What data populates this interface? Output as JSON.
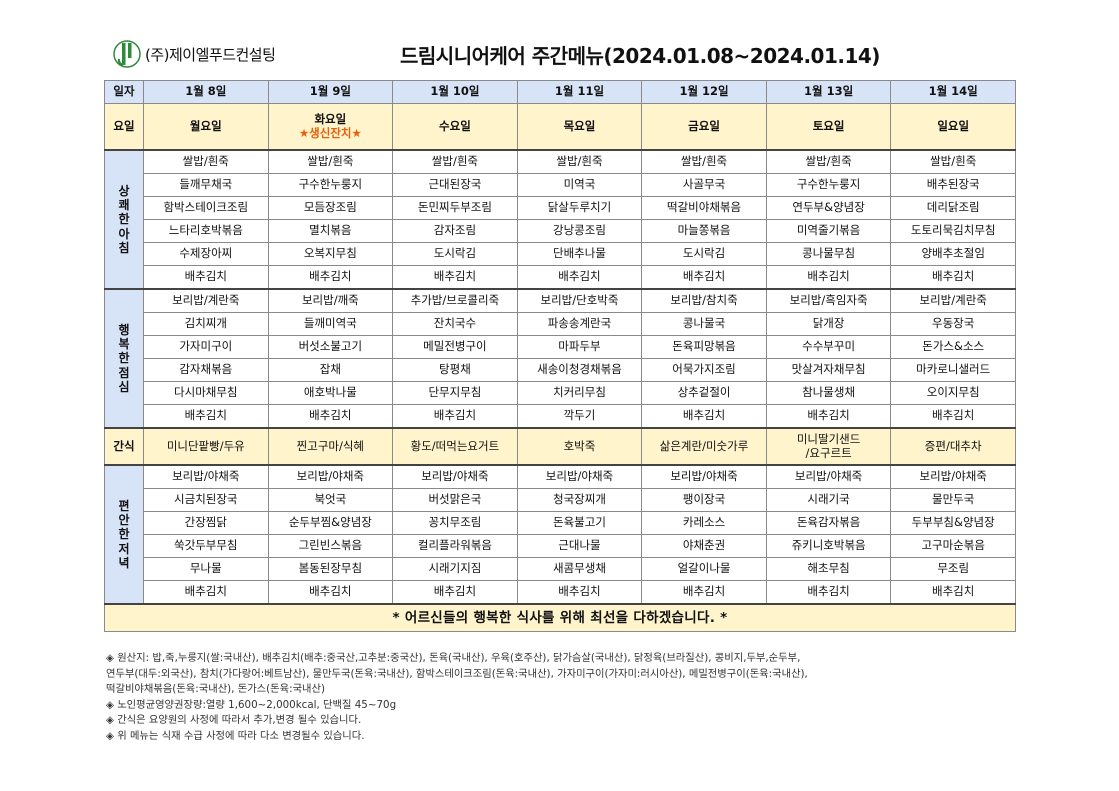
{
  "company": {
    "name": "(주)제이엘푸드컨설팅"
  },
  "title": "드림시니어케어 주간메뉴(2024.01.08~2024.01.14)",
  "header": {
    "date_label": "일자",
    "day_label": "요일",
    "dates": [
      "1월 8일",
      "1월 9일",
      "1월 10일",
      "1월 11일",
      "1월 12일",
      "1월 13일",
      "1월 14일"
    ],
    "days": [
      "월요일",
      "화요일",
      "수요일",
      "목요일",
      "금요일",
      "토요일",
      "일요일"
    ],
    "event": "★생신잔치★"
  },
  "breakfast": {
    "label": [
      "상",
      "쾌",
      "한",
      "아",
      "침"
    ],
    "rows": [
      [
        "쌀밥/흰죽",
        "쌀밥/흰죽",
        "쌀밥/흰죽",
        "쌀밥/흰죽",
        "쌀밥/흰죽",
        "쌀밥/흰죽",
        "쌀밥/흰죽"
      ],
      [
        "들깨무채국",
        "구수한누룽지",
        "근대된장국",
        "미역국",
        "사골무국",
        "구수한누룽지",
        "배추된장국"
      ],
      [
        "함박스테이크조림",
        "모듬장조림",
        "돈민찌두부조림",
        "닭살두루치기",
        "떡갈비야채볶음",
        "연두부&양념장",
        "데리닭조림"
      ],
      [
        "느타리호박볶음",
        "멸치볶음",
        "감자조림",
        "강낭콩조림",
        "마늘쫑볶음",
        "미역줄기볶음",
        "도토리묵김치무침"
      ],
      [
        "수제장아찌",
        "오복지무침",
        "도시락김",
        "단배추나물",
        "도시락김",
        "콩나물무침",
        "양배추초절임"
      ],
      [
        "배추김치",
        "배추김치",
        "배추김치",
        "배추김치",
        "배추김치",
        "배추김치",
        "배추김치"
      ]
    ]
  },
  "lunch": {
    "label": [
      "행",
      "복",
      "한",
      "점",
      "심"
    ],
    "rows": [
      [
        "보리밥/계란죽",
        "보리밥/깨죽",
        "추가밥/브로콜리죽",
        "보리밥/단호박죽",
        "보리밥/참치죽",
        "보리밥/흑임자죽",
        "보리밥/계란죽"
      ],
      [
        "김치찌개",
        "들깨미역국",
        "잔치국수",
        "파송송계란국",
        "콩나물국",
        "닭개장",
        "우동장국"
      ],
      [
        "가자미구이",
        "버섯소불고기",
        "메밀전병구이",
        "마파두부",
        "돈육피망볶음",
        "수수부꾸미",
        "돈가스&소스"
      ],
      [
        "감자채볶음",
        "잡채",
        "탕평채",
        "새송이청경채볶음",
        "어묵가지조림",
        "맛살겨자채무침",
        "마카로니샐러드"
      ],
      [
        "다시마채무침",
        "애호박나물",
        "단무지무침",
        "치커리무침",
        "상추겉절이",
        "참나물생채",
        "오이지무침"
      ],
      [
        "배추김치",
        "배추김치",
        "배추김치",
        "깍두기",
        "배추김치",
        "배추김치",
        "배추김치"
      ]
    ]
  },
  "snack": {
    "label": "간식",
    "items": [
      "미니단팥빵/두유",
      "찐고구마/식혜",
      "황도/떠먹는요거트",
      "호박죽",
      "삶은계란/미숫가루",
      "미니딸기샌드\n/요구르트",
      "증편/대추차"
    ]
  },
  "dinner": {
    "label": [
      "편",
      "안",
      "한",
      "저",
      "녁"
    ],
    "rows": [
      [
        "보리밥/야채죽",
        "보리밥/야채죽",
        "보리밥/야채죽",
        "보리밥/야채죽",
        "보리밥/야채죽",
        "보리밥/야채죽",
        "보리밥/야채죽"
      ],
      [
        "시금치된장국",
        "북엇국",
        "버섯맑은국",
        "청국장찌개",
        "팽이장국",
        "시래기국",
        "물만두국"
      ],
      [
        "간장찜닭",
        "순두부찜&양념장",
        "꽁치무조림",
        "돈육불고기",
        "카레소스",
        "돈육감자볶음",
        "두부부침&양념장"
      ],
      [
        "쑥갓두부무침",
        "그린빈스볶음",
        "컬리플라워볶음",
        "근대나물",
        "야채춘권",
        "쥬키니호박볶음",
        "고구마순볶음"
      ],
      [
        "무나물",
        "봄동된장무침",
        "시래기지짐",
        "새콤무생채",
        "얼갈이나물",
        "해초무침",
        "무조림"
      ],
      [
        "배추김치",
        "배추김치",
        "배추김치",
        "배추김치",
        "배추김치",
        "배추김치",
        "배추김치"
      ]
    ]
  },
  "footer_message": "* 어르신들의 행복한 식사를 위해 최선을 다하겠습니다. *",
  "notes": [
    "◈ 원산지: 밥,죽,누룽지(쌀:국내산), 배추김치(배추:중국산,고추분:중국산), 돈육(국내산), 우육(호주산), 닭가슴살(국내산), 닭정육(브라질산), 콩비지,두부,순두부,",
    "연두부(대두:외국산), 참치(가다랑어:베트남산), 물만두국(돈육:국내산), 함박스테이크조림(돈육:국내산), 가자미구이(가자미:러시아산), 메밀전병구이(돈육:국내산),",
    "떡갈비야채볶음(돈육:국내산), 돈가스(돈육:국내산)",
    "◈ 노인평균영양권장량:열량 1,600~2,000kcal, 단백질 45~70g",
    "◈ 간식은 요양원의 사정에 따라서 추가,변경 될수 있습니다.",
    "◈ 위 메뉴는 식재 수급 사정에 따라 다소 변경될수 있습니다."
  ],
  "colors": {
    "header_blue": "#d7e3f6",
    "highlight_yellow": "#fff4cc",
    "logo_green": "#2e8b3a",
    "event_orange": "#e8600a"
  },
  "icons": {
    "logo": "company-logo-icon"
  }
}
